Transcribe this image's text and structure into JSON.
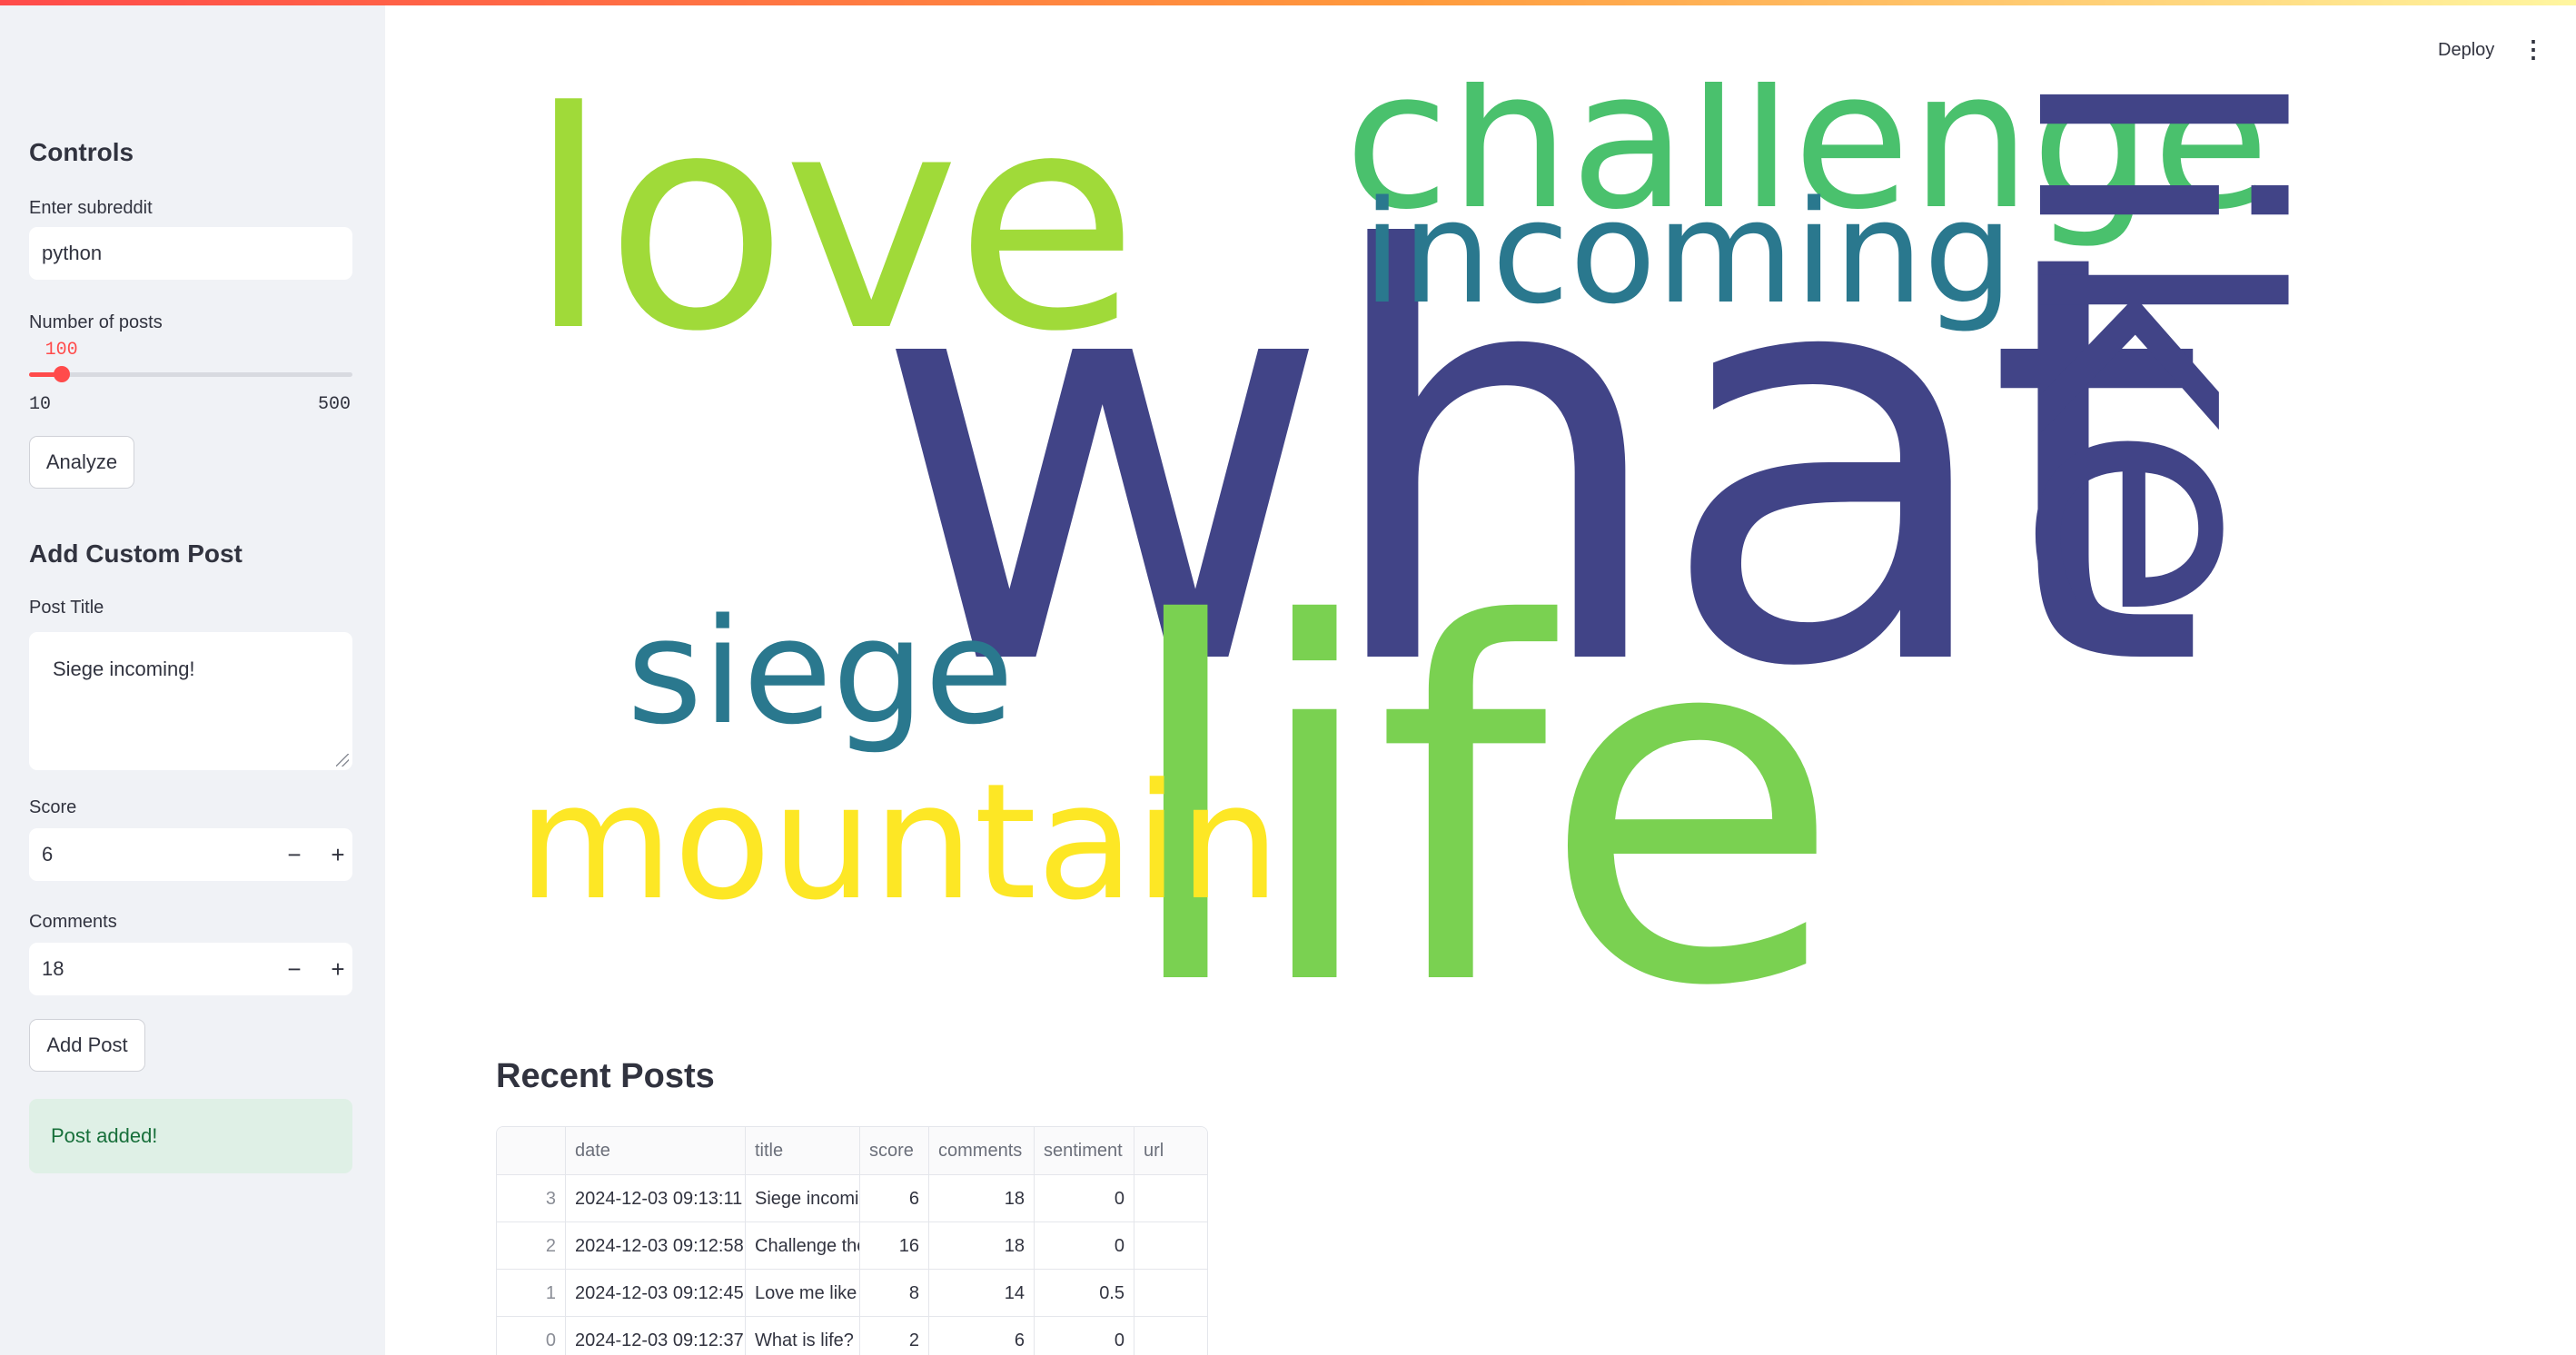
{
  "header": {
    "deploy_label": "Deploy",
    "menu_icon": "kebab-menu-icon"
  },
  "sidebar": {
    "controls_title": "Controls",
    "subreddit": {
      "label": "Enter subreddit",
      "value": "python"
    },
    "posts_slider": {
      "label": "Number of posts",
      "value": "100",
      "min": "10",
      "max": "500",
      "fraction": 0.1
    },
    "analyze_label": "Analyze",
    "custom_title": "Add Custom Post",
    "post_title": {
      "label": "Post Title",
      "value": "Siege incoming!"
    },
    "score": {
      "label": "Score",
      "value": "6",
      "minus": "−",
      "plus": "+"
    },
    "comments": {
      "label": "Comments",
      "value": "18",
      "minus": "−",
      "plus": "+"
    },
    "add_post_label": "Add Post",
    "success_message": "Post added!"
  },
  "wordcloud": {
    "words": [
      {
        "text": "what",
        "color": "#414487"
      },
      {
        "text": "life",
        "color": "#7ad151"
      },
      {
        "text": "love",
        "color": "#a0da39"
      },
      {
        "text": "challenge",
        "color": "#4ac16d"
      },
      {
        "text": "incoming",
        "color": "#2a788e"
      },
      {
        "text": "like",
        "color": "#414487"
      },
      {
        "text": "siege",
        "color": "#2a788e"
      },
      {
        "text": "mountain",
        "color": "#fde725"
      }
    ]
  },
  "recent_posts": {
    "title": "Recent Posts",
    "columns": [
      "",
      "date",
      "title",
      "score",
      "comments",
      "sentiment",
      "url"
    ],
    "rows": [
      {
        "index": "3",
        "date": "2024-12-03 09:13:11",
        "title": "Siege incomi",
        "score": "6",
        "comments": "18",
        "sentiment": "0",
        "url": ""
      },
      {
        "index": "2",
        "date": "2024-12-03 09:12:58",
        "title": "Challenge the",
        "score": "16",
        "comments": "18",
        "sentiment": "0",
        "url": ""
      },
      {
        "index": "1",
        "date": "2024-12-03 09:12:45",
        "title": "Love me like y",
        "score": "8",
        "comments": "14",
        "sentiment": "0.5",
        "url": ""
      },
      {
        "index": "0",
        "date": "2024-12-03 09:12:37",
        "title": "What is life?",
        "score": "2",
        "comments": "6",
        "sentiment": "0",
        "url": ""
      }
    ]
  }
}
